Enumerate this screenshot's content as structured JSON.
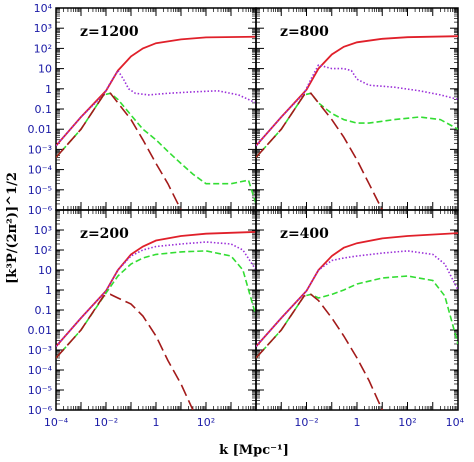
{
  "chart_data": {
    "type": "line",
    "layout": "2x2 grid of log-log panels with shared axes",
    "ylabel": "[k³P/(2π²)]^1/2",
    "xlabel": "k [Mpc⁻¹]",
    "x_scale": "log",
    "y_scale": "log",
    "top_xlim": [
      0.0001,
      10000
    ],
    "top_ylim": [
      1e-06,
      10000
    ],
    "bottom_xlim": [
      0.0001,
      10000
    ],
    "bottom_ylim": [
      1e-06,
      10000
    ],
    "y_ticks": [
      "10⁴",
      "10³",
      "10²",
      "10",
      "1",
      "0.1",
      "0.01",
      "10⁻³",
      "10⁻⁴",
      "10⁻⁵",
      "10⁻⁶"
    ],
    "x_ticks_bottom_left": [
      "10⁻⁴",
      "10⁻²",
      "1",
      "10²"
    ],
    "x_ticks_bottom_right": [
      "10⁻²",
      "1",
      "10²",
      "10⁴"
    ],
    "legend": "none",
    "series_styles": [
      {
        "color": "#e0202a",
        "style": "solid"
      },
      {
        "color": "#9b30d9",
        "style": "dotted"
      },
      {
        "color": "#33dd33",
        "style": "dashed"
      },
      {
        "color": "#a31a1a",
        "style": "long-dash"
      }
    ],
    "panels": [
      {
        "label": "z=1200",
        "series": [
          {
            "values": [
              [
                0.0001,
                0.0015
              ],
              [
                0.001,
                0.04
              ],
              [
                0.01,
                0.8
              ],
              [
                0.03,
                8
              ],
              [
                0.1,
                40
              ],
              [
                0.3,
                100
              ],
              [
                1,
                180
              ],
              [
                10,
                280
              ],
              [
                100,
                350
              ],
              [
                10000,
                380
              ]
            ]
          },
          {
            "values": [
              [
                0.0001,
                0.0015
              ],
              [
                0.001,
                0.04
              ],
              [
                0.008,
                0.5
              ],
              [
                0.015,
                2
              ],
              [
                0.03,
                8
              ],
              [
                0.05,
                3
              ],
              [
                0.08,
                1
              ],
              [
                0.15,
                0.6
              ],
              [
                0.5,
                0.5
              ],
              [
                3,
                0.6
              ],
              [
                30,
                0.7
              ],
              [
                300,
                0.8
              ],
              [
                2000,
                0.5
              ],
              [
                10000,
                0.2
              ]
            ]
          },
          {
            "values": [
              [
                0.0001,
                0.0004
              ],
              [
                0.001,
                0.01
              ],
              [
                0.008,
                0.5
              ],
              [
                0.015,
                0.6
              ],
              [
                0.03,
                0.3
              ],
              [
                0.1,
                0.05
              ],
              [
                0.3,
                0.01
              ],
              [
                1,
                0.003
              ],
              [
                3,
                0.0008
              ],
              [
                10,
                0.0002
              ],
              [
                30,
                6e-05
              ],
              [
                100,
                2e-05
              ],
              [
                300,
                2e-05
              ],
              [
                1000,
                2e-05
              ],
              [
                5000,
                3e-05
              ],
              [
                10000,
                2e-06
              ]
            ]
          },
          {
            "values": [
              [
                0.0001,
                0.0004
              ],
              [
                0.001,
                0.01
              ],
              [
                0.008,
                0.5
              ],
              [
                0.015,
                0.6
              ],
              [
                0.03,
                0.2
              ],
              [
                0.1,
                0.03
              ],
              [
                0.3,
                0.003
              ],
              [
                1,
                0.0002
              ],
              [
                3,
                2e-05
              ],
              [
                10,
                1e-06
              ]
            ]
          }
        ]
      },
      {
        "label": "z=800",
        "series": [
          {
            "values": [
              [
                0.0001,
                0.0015
              ],
              [
                0.001,
                0.04
              ],
              [
                0.01,
                0.9
              ],
              [
                0.03,
                10
              ],
              [
                0.1,
                50
              ],
              [
                0.3,
                120
              ],
              [
                1,
                200
              ],
              [
                10,
                300
              ],
              [
                100,
                360
              ],
              [
                10000,
                400
              ]
            ]
          },
          {
            "values": [
              [
                0.0001,
                0.0015
              ],
              [
                0.001,
                0.04
              ],
              [
                0.008,
                0.6
              ],
              [
                0.015,
                3
              ],
              [
                0.03,
                15
              ],
              [
                0.1,
                10
              ],
              [
                0.3,
                10
              ],
              [
                0.6,
                8
              ],
              [
                1,
                3
              ],
              [
                3,
                1.5
              ],
              [
                30,
                1.2
              ],
              [
                300,
                0.8
              ],
              [
                2000,
                0.5
              ],
              [
                10000,
                0.3
              ]
            ]
          },
          {
            "values": [
              [
                0.0001,
                0.0004
              ],
              [
                0.001,
                0.01
              ],
              [
                0.008,
                0.5
              ],
              [
                0.015,
                0.6
              ],
              [
                0.03,
                0.2
              ],
              [
                0.1,
                0.06
              ],
              [
                0.3,
                0.03
              ],
              [
                1,
                0.02
              ],
              [
                3,
                0.02
              ],
              [
                30,
                0.03
              ],
              [
                300,
                0.04
              ],
              [
                2000,
                0.03
              ],
              [
                10000,
                0.01
              ]
            ]
          },
          {
            "values": [
              [
                0.0001,
                0.0004
              ],
              [
                0.001,
                0.01
              ],
              [
                0.008,
                0.5
              ],
              [
                0.015,
                0.6
              ],
              [
                0.03,
                0.2
              ],
              [
                0.1,
                0.03
              ],
              [
                0.3,
                0.004
              ],
              [
                1,
                0.0003
              ],
              [
                3,
                2e-05
              ],
              [
                10,
                1e-06
              ]
            ]
          }
        ]
      },
      {
        "label": "z=200",
        "series": [
          {
            "values": [
              [
                0.0001,
                0.0015
              ],
              [
                0.001,
                0.04
              ],
              [
                0.01,
                0.9
              ],
              [
                0.03,
                10
              ],
              [
                0.1,
                60
              ],
              [
                0.3,
                150
              ],
              [
                1,
                300
              ],
              [
                10,
                500
              ],
              [
                100,
                650
              ],
              [
                10000,
                800
              ]
            ]
          },
          {
            "values": [
              [
                0.0001,
                0.0015
              ],
              [
                0.001,
                0.04
              ],
              [
                0.01,
                0.9
              ],
              [
                0.03,
                10
              ],
              [
                0.1,
                50
              ],
              [
                0.3,
                100
              ],
              [
                1,
                150
              ],
              [
                10,
                200
              ],
              [
                100,
                250
              ],
              [
                1000,
                200
              ],
              [
                3000,
                100
              ],
              [
                10000,
                10
              ]
            ]
          },
          {
            "values": [
              [
                0.0001,
                0.0004
              ],
              [
                0.001,
                0.01
              ],
              [
                0.01,
                0.7
              ],
              [
                0.03,
                5
              ],
              [
                0.1,
                20
              ],
              [
                0.3,
                40
              ],
              [
                1,
                60
              ],
              [
                10,
                80
              ],
              [
                100,
                90
              ],
              [
                1000,
                50
              ],
              [
                3000,
                10
              ],
              [
                10000,
                0.05
              ]
            ]
          },
          {
            "values": [
              [
                0.0001,
                0.0004
              ],
              [
                0.001,
                0.01
              ],
              [
                0.008,
                0.5
              ],
              [
                0.015,
                0.6
              ],
              [
                0.03,
                0.4
              ],
              [
                0.1,
                0.2
              ],
              [
                0.3,
                0.05
              ],
              [
                1,
                0.005
              ],
              [
                3,
                0.0003
              ],
              [
                10,
                2e-05
              ],
              [
                30,
                1e-06
              ]
            ]
          }
        ]
      },
      {
        "label": "z=400",
        "series": [
          {
            "values": [
              [
                0.0001,
                0.0015
              ],
              [
                0.001,
                0.04
              ],
              [
                0.01,
                0.9
              ],
              [
                0.03,
                10
              ],
              [
                0.1,
                50
              ],
              [
                0.3,
                130
              ],
              [
                1,
                220
              ],
              [
                10,
                380
              ],
              [
                100,
                500
              ],
              [
                10000,
                700
              ]
            ]
          },
          {
            "values": [
              [
                0.0001,
                0.0015
              ],
              [
                0.001,
                0.04
              ],
              [
                0.01,
                0.9
              ],
              [
                0.03,
                10
              ],
              [
                0.1,
                30
              ],
              [
                0.3,
                40
              ],
              [
                1,
                50
              ],
              [
                10,
                70
              ],
              [
                100,
                90
              ],
              [
                1000,
                60
              ],
              [
                3000,
                20
              ],
              [
                10000,
                1
              ]
            ]
          },
          {
            "values": [
              [
                0.0001,
                0.0004
              ],
              [
                0.001,
                0.01
              ],
              [
                0.008,
                0.5
              ],
              [
                0.015,
                0.6
              ],
              [
                0.03,
                0.4
              ],
              [
                0.1,
                0.6
              ],
              [
                0.3,
                1
              ],
              [
                1,
                2
              ],
              [
                10,
                4
              ],
              [
                100,
                5
              ],
              [
                1000,
                3
              ],
              [
                3000,
                0.5
              ],
              [
                10000,
                0.002
              ]
            ]
          },
          {
            "values": [
              [
                0.0001,
                0.0004
              ],
              [
                0.001,
                0.01
              ],
              [
                0.008,
                0.5
              ],
              [
                0.015,
                0.6
              ],
              [
                0.03,
                0.3
              ],
              [
                0.1,
                0.04
              ],
              [
                0.3,
                0.005
              ],
              [
                1,
                0.0004
              ],
              [
                3,
                3e-05
              ],
              [
                10,
                1e-06
              ]
            ]
          }
        ]
      }
    ]
  }
}
